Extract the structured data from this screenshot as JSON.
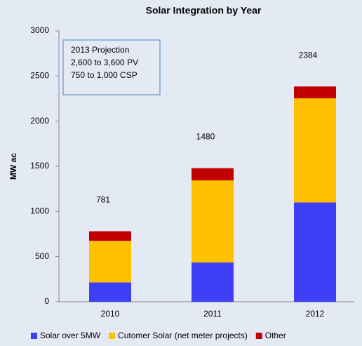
{
  "chart_data": {
    "type": "stacked_bar",
    "title": "Solar Integration by Year",
    "y_label": "MW ac",
    "categories": [
      "2010",
      "2011",
      "2012"
    ],
    "series": [
      {
        "name": "Solar over 5MW",
        "color": "#3f3ff5",
        "values": [
          215,
          435,
          1100
        ]
      },
      {
        "name": "Cutomer Solar (net meter projects)",
        "color": "#ffc000",
        "values": [
          460,
          909,
          1153
        ]
      },
      {
        "name": "Other",
        "color": "#c00000",
        "values": [
          106,
          136,
          131
        ]
      }
    ],
    "totals": [
      781,
      1480,
      2384
    ],
    "annotation": [
      "2013 Projection",
      "2,600 to 3,600 PV",
      "750 to 1,000 CSP"
    ],
    "ylim": [
      0,
      3000
    ],
    "yticks": [
      0,
      500,
      1000,
      1500,
      2000,
      2500,
      3000
    ],
    "grid": false,
    "legend": "bottom"
  }
}
